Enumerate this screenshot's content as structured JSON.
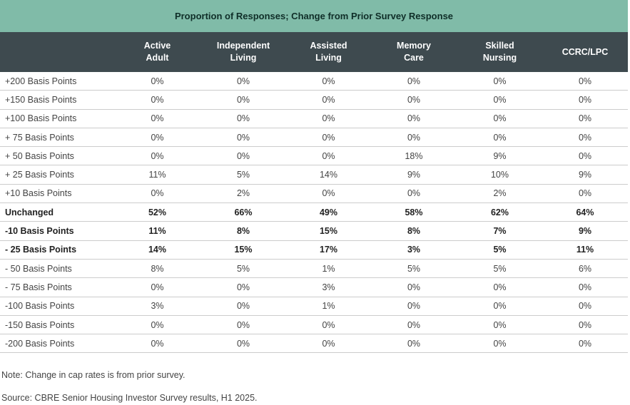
{
  "header": {
    "title": "Proportion of Responses; Change from Prior Survey Response"
  },
  "footer": {
    "note": "Note: Change in cap rates is from prior survey.",
    "source": "Source: CBRE Senior Housing Investor Survey results, H1 2025."
  },
  "colors": {
    "banner": "#80bba8",
    "header_row": "#3e4a4f",
    "row_border": "#cccccc"
  },
  "chart_data": {
    "type": "table",
    "title": "Proportion of Responses; Change from Prior Survey Response",
    "columns": [
      "Active Adult",
      "Independent Living",
      "Assisted Living",
      "Memory Care",
      "Skilled Nursing",
      "CCRC/LPC"
    ],
    "column_lines": [
      [
        "Active",
        "Adult"
      ],
      [
        "Independent Living"
      ],
      [
        "Assisted",
        "Living"
      ],
      [
        "Memory",
        "Care"
      ],
      [
        "Skilled",
        "Nursing"
      ],
      [
        "CCRC/LPC"
      ]
    ],
    "rows": [
      {
        "label": "+200 Basis Points",
        "bold": false,
        "values": [
          "0%",
          "0%",
          "0%",
          "0%",
          "0%",
          "0%"
        ]
      },
      {
        "label": "+150 Basis Points",
        "bold": false,
        "values": [
          "0%",
          "0%",
          "0%",
          "0%",
          "0%",
          "0%"
        ]
      },
      {
        "label": "+100 Basis Points",
        "bold": false,
        "values": [
          "0%",
          "0%",
          "0%",
          "0%",
          "0%",
          "0%"
        ]
      },
      {
        "label": "+ 75 Basis Points",
        "bold": false,
        "values": [
          "0%",
          "0%",
          "0%",
          "0%",
          "0%",
          "0%"
        ]
      },
      {
        "label": "+ 50 Basis Points",
        "bold": false,
        "values": [
          "0%",
          "0%",
          "0%",
          "18%",
          "9%",
          "0%"
        ]
      },
      {
        "label": "+ 25 Basis Points",
        "bold": false,
        "values": [
          "11%",
          "5%",
          "14%",
          "9%",
          "10%",
          "9%"
        ]
      },
      {
        "label": "+10 Basis Points",
        "bold": false,
        "values": [
          "0%",
          "2%",
          "0%",
          "0%",
          "2%",
          "0%"
        ]
      },
      {
        "label": "Unchanged",
        "bold": true,
        "values": [
          "52%",
          "66%",
          "49%",
          "58%",
          "62%",
          "64%"
        ]
      },
      {
        "label": "-10 Basis Points",
        "bold": true,
        "values": [
          "11%",
          "8%",
          "15%",
          "8%",
          "7%",
          "9%"
        ]
      },
      {
        "label": "- 25 Basis Points",
        "bold": true,
        "values": [
          "14%",
          "15%",
          "17%",
          "3%",
          "5%",
          "11%"
        ]
      },
      {
        "label": "- 50 Basis Points",
        "bold": false,
        "values": [
          "8%",
          "5%",
          "1%",
          "5%",
          "5%",
          "6%"
        ]
      },
      {
        "label": "- 75 Basis Points",
        "bold": false,
        "values": [
          "0%",
          "0%",
          "3%",
          "0%",
          "0%",
          "0%"
        ]
      },
      {
        "label": "-100 Basis Points",
        "bold": false,
        "values": [
          "3%",
          "0%",
          "1%",
          "0%",
          "0%",
          "0%"
        ]
      },
      {
        "label": "-150 Basis Points",
        "bold": false,
        "values": [
          "0%",
          "0%",
          "0%",
          "0%",
          "0%",
          "0%"
        ]
      },
      {
        "label": "-200 Basis Points",
        "bold": false,
        "values": [
          "0%",
          "0%",
          "0%",
          "0%",
          "0%",
          "0%"
        ]
      }
    ]
  }
}
